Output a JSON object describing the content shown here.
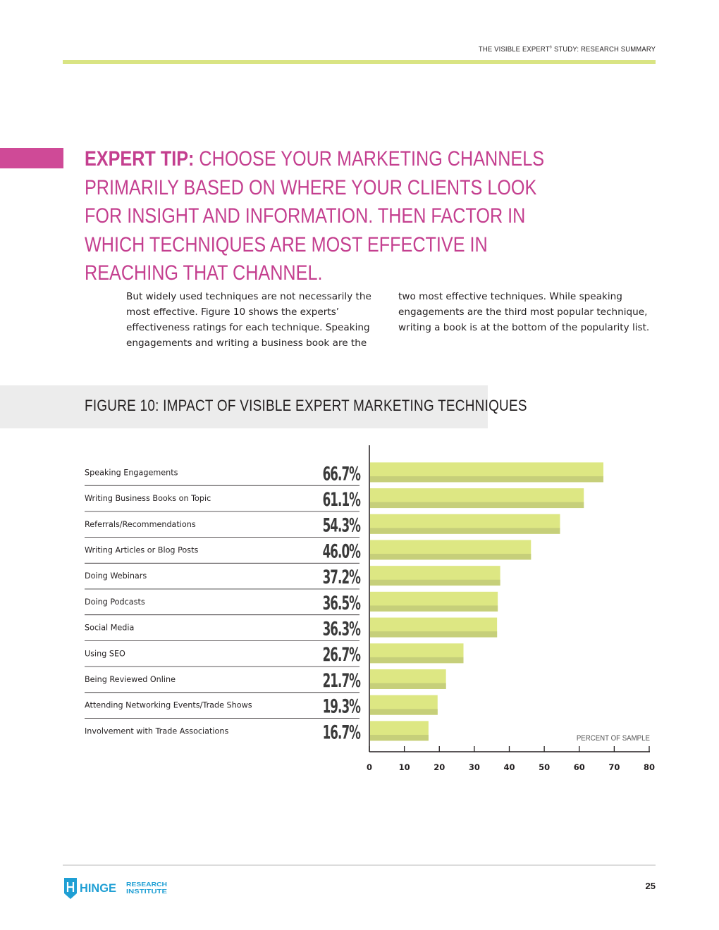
{
  "header": {
    "title": "THE VISIBLE EXPERT",
    "tm": "®",
    "subtitle": " STUDY: RESEARCH SUMMARY"
  },
  "tip": {
    "label": "EXPERT TIP:",
    "text": " CHOOSE YOUR MARKETING CHANNELS PRIMARILY BASED ON WHERE YOUR CLIENTS LOOK FOR INSIGHT AND INFORMATION. THEN FACTOR IN WHICH TECHNIQUES ARE MOST EFFECTIVE IN REACHING THAT CHANNEL."
  },
  "body": {
    "col1": "But widely used techniques are not necessarily the most effective. Figure 10 shows the experts’ effectiveness ratings for each technique. Speaking engagements and writing a business book are the",
    "col2": "two most effective techniques. While speaking engagements are the third most popular technique, writing a book is at the bottom of the popularity list."
  },
  "figure": {
    "title": "FIGURE 10: IMPACT OF VISIBLE EXPERT MARKETING TECHNIQUES"
  },
  "chart_data": {
    "type": "bar",
    "orientation": "horizontal",
    "categories": [
      "Speaking Engagements",
      "Writing Business Books on Topic",
      "Referrals/Recommendations",
      "Writing Articles or Blog Posts",
      "Doing Webinars",
      "Doing Podcasts",
      "Social Media",
      "Using SEO",
      "Being Reviewed Online",
      "Attending Networking Events/Trade Shows",
      "Involvement with Trade Associations"
    ],
    "values": [
      66.7,
      61.1,
      54.3,
      46.0,
      37.2,
      36.5,
      36.3,
      26.7,
      21.7,
      19.3,
      16.7
    ],
    "value_labels": [
      "66.7%",
      "61.1%",
      "54.3%",
      "46.0%",
      "37.2%",
      "36.5%",
      "36.3%",
      "26.7%",
      "21.7%",
      "19.3%",
      "16.7%"
    ],
    "xlabel": "PERCENT OF SAMPLE",
    "xlim": [
      0,
      80
    ],
    "ticks": [
      "0",
      "10",
      "20",
      "30",
      "40",
      "50",
      "60",
      "70",
      "80"
    ],
    "bar_color": "#dde783",
    "bar_shade_color": "#c6cf7a",
    "grid": false
  },
  "footer": {
    "logo_word": "HINGE",
    "logo_research": "RESEARCH",
    "logo_institute": "INSTITUTE",
    "page_number": "25",
    "logo_color": "#1f9fd4"
  }
}
